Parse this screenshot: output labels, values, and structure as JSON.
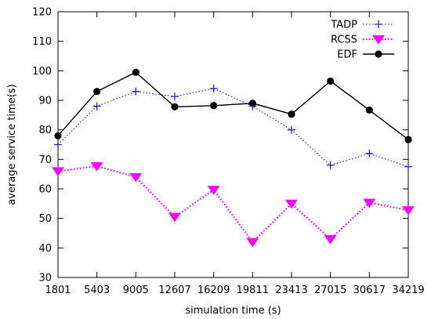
{
  "chart_data": {
    "type": "line",
    "xlabel": "simulation time (s)",
    "ylabel": "average service time(s)",
    "x": [
      "1801",
      "5403",
      "9005",
      "12607",
      "16209",
      "19811",
      "23413",
      "27015",
      "30617",
      "34219"
    ],
    "ylim": [
      30,
      120
    ],
    "yticks": [
      30,
      40,
      50,
      60,
      70,
      80,
      90,
      100,
      110,
      120
    ],
    "grid": false,
    "legend_position": "top-right",
    "series": [
      {
        "name": "TADP",
        "color": "#2222ee",
        "line_style": "dotted",
        "marker": "plus",
        "values": [
          75,
          88,
          93,
          91.3,
          94,
          88,
          80,
          68,
          72,
          67.5
        ]
      },
      {
        "name": "RCSS",
        "color": "#ff00ff",
        "line_style": "dotted",
        "marker": "triangle-down",
        "values": [
          66,
          67.7,
          64,
          50.5,
          59.7,
          42,
          55,
          43,
          55.3,
          52.8
        ]
      },
      {
        "name": "EDF",
        "color": "#000000",
        "line_style": "solid",
        "marker": "circle",
        "values": [
          78,
          93,
          99.5,
          87.8,
          88.2,
          89,
          85.3,
          96.5,
          86.7,
          76.7
        ]
      }
    ]
  }
}
